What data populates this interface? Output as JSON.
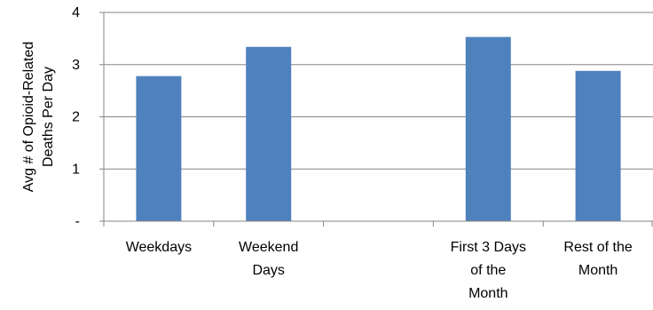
{
  "chart_data": {
    "type": "bar",
    "categories": [
      [
        "Weekdays"
      ],
      [
        "Weekend",
        "Days"
      ],
      [],
      [
        "First 3 Days",
        "of the",
        "Month"
      ],
      [
        "Rest of the",
        "Month"
      ]
    ],
    "values": [
      2.78,
      3.34,
      null,
      3.53,
      2.88
    ],
    "ylabel_lines": [
      "Avg # of Opioid-Related",
      "Deaths Per Day"
    ],
    "ylim": [
      0,
      4
    ],
    "yticks": [
      {
        "value": 0,
        "label": "-"
      },
      {
        "value": 1,
        "label": "1"
      },
      {
        "value": 2,
        "label": "2"
      },
      {
        "value": 3,
        "label": "3"
      },
      {
        "value": 4,
        "label": "4"
      }
    ],
    "grid": true,
    "colors": {
      "bar": "#4f81bd",
      "grid": "#868686",
      "axis": "#868686"
    }
  }
}
